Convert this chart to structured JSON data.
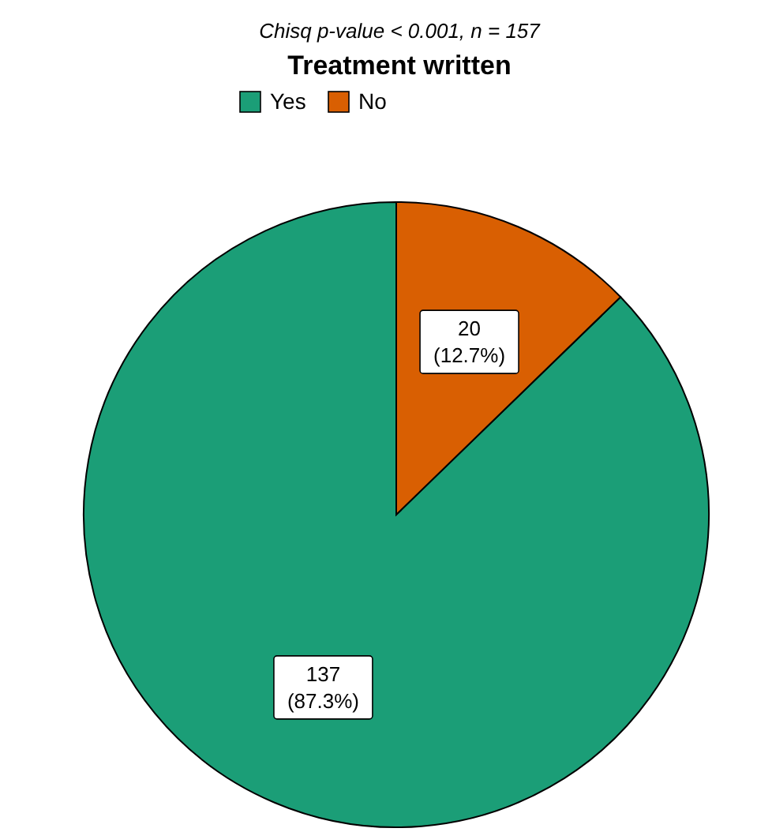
{
  "chart_data": {
    "type": "pie",
    "subtitle": "Chisq p-value < 0.001, n = 157",
    "legend_title": "Treatment written",
    "categories": [
      "Yes",
      "No"
    ],
    "values": [
      137,
      20
    ],
    "colors": [
      "#1b9e77",
      "#d95f02"
    ],
    "value_labels": [
      "137\n(87.3%)",
      "20\n(12.7%)"
    ],
    "legend": "top"
  }
}
